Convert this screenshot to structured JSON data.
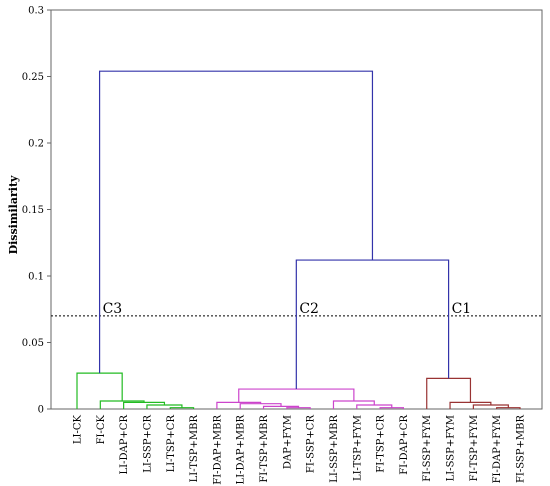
{
  "chart_data": {
    "type": "dendrogram",
    "ylabel": "Dissimilarity",
    "ylim": [
      0,
      0.3
    ],
    "yticks": [
      "0",
      "0.05",
      "0.1",
      "0.15",
      "0.2",
      "0.25",
      "0.3"
    ],
    "cutoff": 0.07,
    "leaves": [
      "LI-CK",
      "FI-CK",
      "LI-DAP+CR",
      "LI-SSP+CR",
      "LI-TSP+CR",
      "LI-TSP+MBR",
      "FI-DAP+MBR",
      "LI-DAP+MBR",
      "FI-TSP+MBR",
      "DAP+FYM",
      "FI-SSP+CR",
      "LI-SSP+MBR",
      "LI-TSP+FYM",
      "FI-TSP+CR",
      "FI-DAP+CR",
      "FI-SSP+FYM",
      "LI-SSP+FYM",
      "FI-TSP+FYM",
      "FI-DAP+FYM",
      "FI-SSP+MBR"
    ],
    "clusters": [
      {
        "label": "C3",
        "color": "#22bb22",
        "leaves": [
          0,
          1,
          2,
          3,
          4,
          5
        ]
      },
      {
        "label": "C2",
        "color": "#cc44cc",
        "leaves": [
          6,
          7,
          8,
          9,
          10,
          11,
          12,
          13,
          14
        ]
      },
      {
        "label": "C1",
        "color": "#993333",
        "leaves": [
          15,
          16,
          17,
          18,
          19
        ]
      }
    ],
    "link_color": "#3333aa",
    "merges": [
      {
        "a": 4,
        "b": 5,
        "h": 0.001,
        "c": "#22bb22"
      },
      {
        "a": 3,
        "b": 20,
        "h": 0.003,
        "c": "#22bb22"
      },
      {
        "a": 2,
        "b": 21,
        "h": 0.005,
        "c": "#22bb22"
      },
      {
        "a": 1,
        "b": 22,
        "h": 0.006,
        "c": "#22bb22"
      },
      {
        "a": 0,
        "b": 23,
        "h": 0.027,
        "c": "#22bb22"
      },
      {
        "a": 9,
        "b": 10,
        "h": 0.001,
        "c": "#cc44cc"
      },
      {
        "a": 8,
        "b": 25,
        "h": 0.002,
        "c": "#cc44cc"
      },
      {
        "a": 13,
        "b": 14,
        "h": 0.001,
        "c": "#cc44cc"
      },
      {
        "a": 12,
        "b": 27,
        "h": 0.003,
        "c": "#cc44cc"
      },
      {
        "a": 7,
        "b": 26,
        "h": 0.004,
        "c": "#cc44cc"
      },
      {
        "a": 6,
        "b": 29,
        "h": 0.005,
        "c": "#cc44cc"
      },
      {
        "a": 11,
        "b": 28,
        "h": 0.006,
        "c": "#cc44cc"
      },
      {
        "a": 30,
        "b": 31,
        "h": 0.015,
        "c": "#cc44cc"
      },
      {
        "a": 18,
        "b": 19,
        "h": 0.001,
        "c": "#993333"
      },
      {
        "a": 17,
        "b": 33,
        "h": 0.003,
        "c": "#993333"
      },
      {
        "a": 16,
        "b": 34,
        "h": 0.005,
        "c": "#993333"
      },
      {
        "a": 15,
        "b": 35,
        "h": 0.023,
        "c": "#993333"
      },
      {
        "a": 32,
        "b": 36,
        "h": 0.112,
        "c": "#3333aa"
      },
      {
        "a": 24,
        "b": 37,
        "h": 0.254,
        "c": "#3333aa"
      }
    ]
  }
}
